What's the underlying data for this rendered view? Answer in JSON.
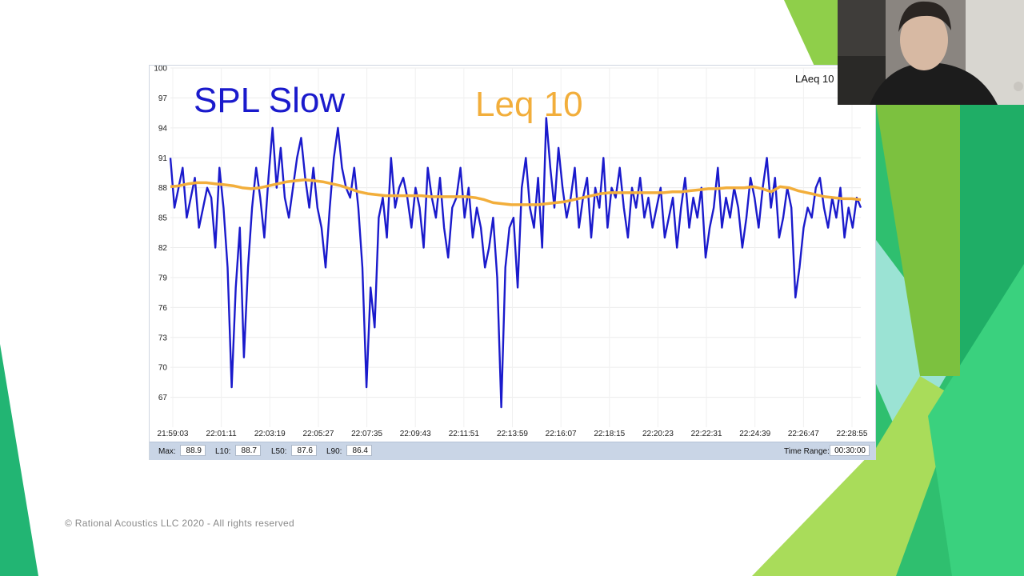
{
  "legend_label": "LAeq 10",
  "copyright": "© Rational Acoustics LLC 2020 - All rights reserved",
  "stats": {
    "max_label": "Max:",
    "max_value": "88.9",
    "l10_label": "L10:",
    "l10_value": "88.7",
    "l50_label": "L50:",
    "l50_value": "87.6",
    "l90_label": "L90:",
    "l90_value": "86.4",
    "time_range_label": "Time Range:",
    "time_range_value": "00:30:00"
  },
  "colors": {
    "spl": "#1a1acc",
    "leq": "#f2ae3b",
    "accent_green": "#3cc46b",
    "lime": "#9ed442"
  },
  "chart_data": {
    "type": "line",
    "title": "",
    "xlabel": "",
    "ylabel": "",
    "ylim": [
      64,
      100
    ],
    "y_ticks": [
      67,
      70,
      73,
      76,
      79,
      82,
      85,
      88,
      91,
      94,
      97,
      100
    ],
    "x_tick_labels": [
      "21:59:03",
      "22:01:11",
      "22:03:19",
      "22:05:27",
      "22:07:35",
      "22:09:43",
      "22:11:51",
      "22:13:59",
      "22:16:07",
      "22:18:15",
      "22:20:23",
      "22:22:31",
      "22:24:39",
      "22:26:47",
      "22:28:55"
    ],
    "series": [
      {
        "name": "SPL Slow",
        "color": "#1a1acc",
        "values": [
          91,
          86,
          88,
          90,
          85,
          87,
          89,
          84,
          86,
          88,
          87,
          82,
          90,
          86,
          80,
          68,
          78,
          84,
          71,
          80,
          86,
          90,
          87,
          83,
          89,
          94,
          88,
          92,
          87,
          85,
          88,
          91,
          93,
          89,
          86,
          90,
          86,
          84,
          80,
          86,
          91,
          94,
          90,
          88,
          87,
          90,
          86,
          80,
          68,
          78,
          74,
          85,
          87,
          83,
          91,
          86,
          88,
          89,
          87,
          84,
          88,
          86,
          82,
          90,
          87,
          85,
          89,
          84,
          81,
          86,
          87,
          90,
          85,
          88,
          83,
          86,
          84,
          80,
          82,
          85,
          79,
          66,
          80,
          84,
          85,
          78,
          88,
          91,
          86,
          84,
          89,
          82,
          95,
          90,
          86,
          92,
          88,
          85,
          87,
          90,
          84,
          87,
          89,
          83,
          88,
          86,
          91,
          84,
          88,
          87,
          90,
          86,
          83,
          88,
          86,
          89,
          85,
          87,
          84,
          86,
          88,
          83,
          85,
          87,
          82,
          86,
          89,
          84,
          87,
          85,
          88,
          81,
          84,
          86,
          90,
          84,
          87,
          85,
          88,
          86,
          82,
          85,
          89,
          87,
          84,
          88,
          91,
          86,
          89,
          83,
          85,
          88,
          86,
          77,
          80,
          84,
          86,
          85,
          88,
          89,
          86,
          84,
          87,
          85,
          88,
          83,
          86,
          84,
          87,
          86
        ]
      },
      {
        "name": "Leq 10",
        "color": "#f2ae3b",
        "values": [
          88.1,
          88.2,
          88.4,
          88.5,
          88.5,
          88.4,
          88.3,
          88.2,
          88.0,
          87.9,
          88.0,
          88.2,
          88.4,
          88.6,
          88.7,
          88.8,
          88.7,
          88.6,
          88.4,
          88.2,
          87.9,
          87.6,
          87.4,
          87.3,
          87.2,
          87.2,
          87.2,
          87.2,
          87.2,
          87.1,
          87.1,
          87.1,
          87.1,
          87.1,
          87.0,
          86.8,
          86.5,
          86.4,
          86.3,
          86.3,
          86.3,
          86.3,
          86.4,
          86.5,
          86.6,
          86.8,
          87.0,
          87.2,
          87.4,
          87.5,
          87.5,
          87.5,
          87.5,
          87.5,
          87.5,
          87.5,
          87.6,
          87.6,
          87.7,
          87.8,
          87.9,
          87.9,
          88.0,
          88.0,
          88.0,
          88.1,
          87.9,
          87.6,
          88.1,
          88.0,
          87.7,
          87.5,
          87.3,
          87.1,
          87.0,
          86.9,
          86.9,
          86.8
        ]
      }
    ]
  }
}
